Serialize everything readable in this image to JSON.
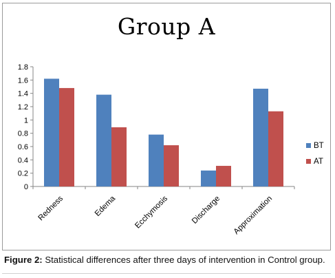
{
  "chart_data": {
    "type": "bar",
    "title": "Group A",
    "categories": [
      "Redness",
      "Edema",
      "Ecchymosis",
      "Discharge",
      "Approximation"
    ],
    "series": [
      {
        "name": "BT",
        "values": [
          1.62,
          1.38,
          0.78,
          0.24,
          1.47
        ],
        "color": "#4F81BD"
      },
      {
        "name": "AT",
        "values": [
          1.48,
          0.89,
          0.62,
          0.31,
          1.13
        ],
        "color": "#C0504D"
      }
    ],
    "ylim": [
      0,
      1.8
    ],
    "yticks": [
      "0",
      "0.2",
      "0.4",
      "0.6",
      "0.8",
      "1",
      "1.2",
      "1.4",
      "1.6",
      "1.8"
    ],
    "xlabel": "",
    "ylabel": "",
    "grid": false,
    "legend_position": "right"
  },
  "caption": {
    "label": "Figure 2:",
    "text": " Statistical differences after three days of intervention in Control group."
  }
}
